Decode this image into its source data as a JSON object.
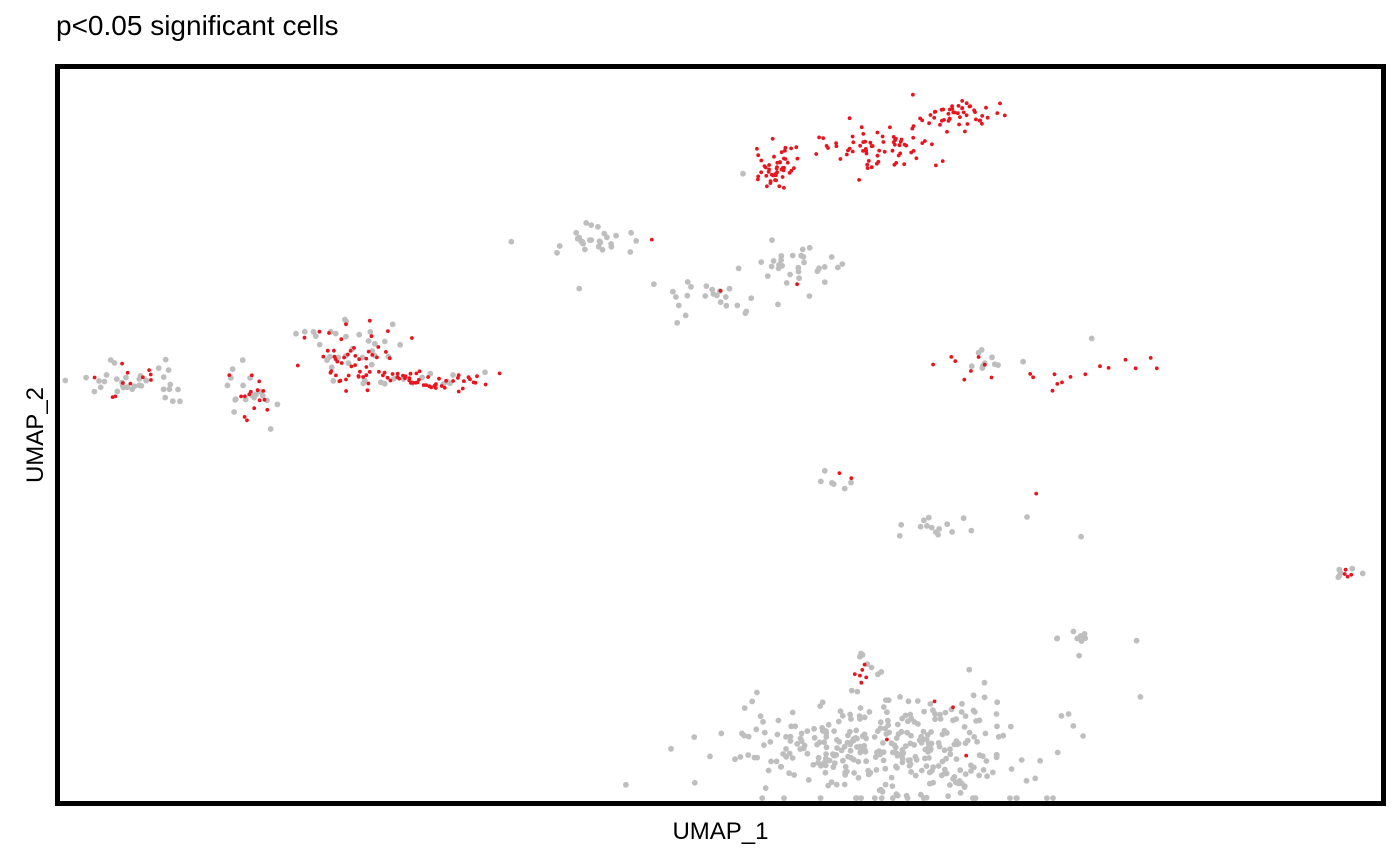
{
  "chart_data": {
    "type": "scatter",
    "title": "p<0.05 significant cells",
    "xlabel": "UMAP_1",
    "ylabel": "UMAP_2",
    "xlim": [
      0,
      100
    ],
    "ylim": [
      0,
      100
    ],
    "axis_ticks": false,
    "grid": false,
    "legend": "none",
    "colors": {
      "background_cells": "#bebebe",
      "significant_cells": "#e8141e",
      "frame": "#000000"
    },
    "series": [
      {
        "role": "not significant",
        "color": "#bebebe",
        "clusters": [
          {
            "center": [
              5.5,
              57.8
            ],
            "spread": [
              2.8,
              1.6
            ],
            "n": 34
          },
          {
            "center": [
              14.8,
              55.3
            ],
            "spread": [
              1.3,
              1.8
            ],
            "n": 18
          },
          {
            "center": [
              21.9,
              61.9
            ],
            "spread": [
              1.8,
              1.8
            ],
            "n": 28
          },
          {
            "center": [
              27.8,
              57.4
            ],
            "spread": [
              2.8,
              0.8
            ],
            "n": 16
          },
          {
            "center": [
              40.4,
              76.5
            ],
            "spread": [
              1.8,
              1.0
            ],
            "n": 28
          },
          {
            "center": [
              48.8,
              68.7
            ],
            "spread": [
              2.3,
              1.3
            ],
            "n": 24
          },
          {
            "center": [
              55.8,
              73.3
            ],
            "spread": [
              1.5,
              1.2
            ],
            "n": 30
          },
          {
            "center": [
              70.5,
              59.9
            ],
            "spread": [
              1.4,
              1.0
            ],
            "n": 10
          },
          {
            "center": [
              65.7,
              37.1
            ],
            "spread": [
              1.4,
              0.8
            ],
            "n": 14
          },
          {
            "center": [
              59.0,
              44.1
            ],
            "spread": [
              1.0,
              0.6
            ],
            "n": 6
          },
          {
            "center": [
              76.8,
              22.3
            ],
            "spread": [
              1.2,
              0.4
            ],
            "n": 8
          },
          {
            "center": [
              97.3,
              31.0
            ],
            "spread": [
              0.6,
              0.4
            ],
            "n": 6
          },
          {
            "center": [
              63.0,
              7.0
            ],
            "spread": [
              6.0,
              3.8
            ],
            "n": 360
          },
          {
            "center": [
              61.3,
              19.0
            ],
            "spread": [
              0.6,
              1.4
            ],
            "n": 6
          }
        ],
        "points": [
          [
            39.3,
            70.0
          ],
          [
            73.2,
            38.8
          ],
          [
            77.3,
            36.1
          ],
          [
            81.5,
            21.9
          ],
          [
            51.7,
            85.7
          ],
          [
            78.1,
            63.2
          ]
        ]
      },
      {
        "role": "significant",
        "color": "#e8141e",
        "clusters": [
          {
            "center": [
              54.2,
              86.1
            ],
            "spread": [
              0.9,
              1.7
            ],
            "n": 48
          },
          {
            "center": [
              61.3,
              89.1
            ],
            "spread": [
              2.5,
              1.6
            ],
            "n": 68
          },
          {
            "center": [
              67.9,
              93.8
            ],
            "spread": [
              1.7,
              1.0
            ],
            "n": 50
          },
          {
            "center": [
              21.9,
              61.2
            ],
            "spread": [
              1.6,
              2.5
            ],
            "n": 45
          },
          {
            "center": [
              28.0,
              57.5
            ],
            "spread": [
              2.6,
              0.8
            ],
            "n": 50
          },
          {
            "center": [
              5.9,
              57.9
            ],
            "spread": [
              2.5,
              1.0
            ],
            "n": 12
          },
          {
            "center": [
              14.8,
              55.3
            ],
            "spread": [
              0.9,
              1.8
            ],
            "n": 14
          },
          {
            "center": [
              75.8,
              57.8
            ],
            "spread": [
              1.5,
              0.8
            ],
            "n": 8
          },
          {
            "center": [
              81.2,
              59.5
            ],
            "spread": [
              1.2,
              0.5
            ],
            "n": 6
          },
          {
            "center": [
              68.7,
              58.6
            ],
            "spread": [
              1.2,
              1.6
            ],
            "n": 8
          },
          {
            "center": [
              60.8,
              17.3
            ],
            "spread": [
              0.4,
              0.6
            ],
            "n": 6
          },
          {
            "center": [
              97.4,
              31.0
            ],
            "spread": [
              0.6,
              0.3
            ],
            "n": 4
          }
        ],
        "points": [
          [
            59.0,
            44.8
          ],
          [
            59.9,
            44.1
          ],
          [
            73.9,
            42.0
          ],
          [
            55.8,
            70.6
          ],
          [
            44.8,
            76.7
          ],
          [
            50.0,
            69.7
          ],
          [
            18.0,
            59.5
          ],
          [
            66.2,
            13.6
          ],
          [
            67.6,
            12.8
          ],
          [
            62.6,
            8.4
          ],
          [
            68.6,
            6.2
          ]
        ]
      }
    ]
  }
}
